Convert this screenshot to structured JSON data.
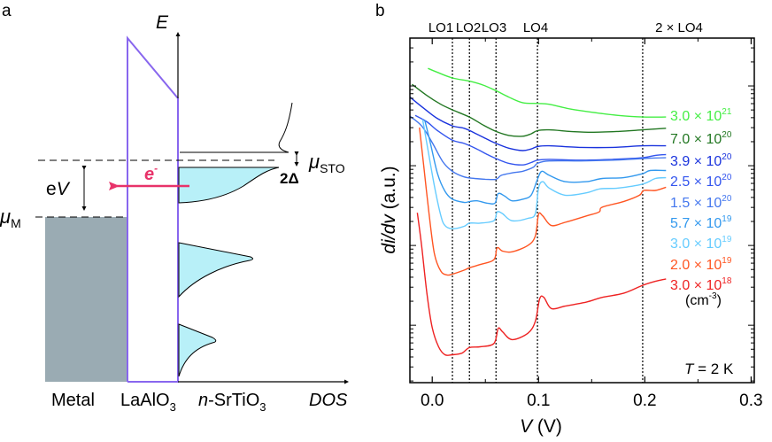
{
  "panel_a": {
    "label": "a",
    "energy_axis_label": "E",
    "dos_axis_label": "DOS",
    "ev_label_e": "e",
    "ev_label_v": "V",
    "mu_sto_symbol": "μ",
    "mu_sto_sub": "STO",
    "mu_m_symbol": "μ",
    "mu_m_sub": "M",
    "gap_label": "2Δ",
    "electron_label": "e",
    "electron_sup": "-",
    "region_labels": {
      "metal": "Metal",
      "barrier_main": "LaAlO",
      "barrier_sub": "3",
      "sto_prefix": "n",
      "sto_main": "-SrTiO",
      "sto_sub": "3"
    },
    "colors": {
      "metal_fill": "#9aabb3",
      "barrier_line": "#8866ee",
      "dos_fill": "#b8f0f8",
      "electron_arrow": "#e8336a"
    }
  },
  "panel_b": {
    "label": "b",
    "temperature_prefix": "T",
    "temperature_value": " = 2 K",
    "unit_label": "(cm",
    "unit_sup": "-3",
    "unit_close": ")",
    "mode_lines": [
      {
        "label": "LO1",
        "V": 0.019
      },
      {
        "label": "LO2",
        "V": 0.035
      },
      {
        "label": "LO3",
        "V": 0.06
      },
      {
        "label": "LO4",
        "V": 0.099
      },
      {
        "label": "2 × LO4",
        "V": 0.198
      }
    ]
  },
  "chart_data": {
    "type": "line",
    "title": "",
    "xlabel": "V (V)",
    "xlabel_italic": "V",
    "xlabel_unit": " (V)",
    "ylabel": "di/dv (a.u.)",
    "ylabel_italic": "di/dv",
    "ylabel_unit": " (a.u.)",
    "x_scale": "linear",
    "y_scale": "log",
    "xlim": [
      -0.021,
      0.303
    ],
    "ylim_log10": [
      0.28,
      4.6
    ],
    "x_ticks": [
      0.0,
      0.1,
      0.2,
      0.3
    ],
    "x_tick_labels": [
      "0.0",
      "0.1",
      "0.2",
      "0.3"
    ],
    "y_tick_labels": [],
    "grid": false,
    "legend_placement": "right, inline at curve ends",
    "series_note": "y values given as log10 of di/dv in arbitrary units (vertically offset curves)",
    "series": [
      {
        "name": "3.0 × 10^21",
        "mantissa": "3.0 × 10",
        "exponent": "21",
        "color": "#44ee44",
        "points": [
          [
            -0.004,
            4.22
          ],
          [
            0.005,
            4.17
          ],
          [
            0.019,
            4.1
          ],
          [
            0.035,
            4.06
          ],
          [
            0.048,
            4.01
          ],
          [
            0.06,
            3.94
          ],
          [
            0.072,
            3.86
          ],
          [
            0.085,
            3.79
          ],
          [
            0.099,
            3.78
          ],
          [
            0.11,
            3.77
          ],
          [
            0.13,
            3.71
          ],
          [
            0.15,
            3.67
          ],
          [
            0.175,
            3.63
          ],
          [
            0.198,
            3.61
          ],
          [
            0.22,
            3.61
          ]
        ]
      },
      {
        "name": "7.0 × 10^20",
        "mantissa": "7.0 × 10",
        "exponent": "20",
        "color": "#227722",
        "points": [
          [
            -0.019,
            4.02
          ],
          [
            -0.005,
            3.88
          ],
          [
            0.008,
            3.77
          ],
          [
            0.019,
            3.7
          ],
          [
            0.035,
            3.61
          ],
          [
            0.048,
            3.51
          ],
          [
            0.06,
            3.43
          ],
          [
            0.072,
            3.38
          ],
          [
            0.085,
            3.37
          ],
          [
            0.093,
            3.4
          ],
          [
            0.099,
            3.44
          ],
          [
            0.11,
            3.45
          ],
          [
            0.13,
            3.43
          ],
          [
            0.15,
            3.42
          ],
          [
            0.175,
            3.43
          ],
          [
            0.198,
            3.45
          ],
          [
            0.22,
            3.47
          ]
        ]
      },
      {
        "name": "3.9 × 10^20",
        "mantissa": "3.9 × 10",
        "exponent": "20",
        "color": "#1a33dd",
        "points": [
          [
            -0.021,
            3.86
          ],
          [
            -0.008,
            3.72
          ],
          [
            0.005,
            3.59
          ],
          [
            0.019,
            3.5
          ],
          [
            0.03,
            3.47
          ],
          [
            0.04,
            3.41
          ],
          [
            0.052,
            3.33
          ],
          [
            0.06,
            3.28
          ],
          [
            0.072,
            3.22
          ],
          [
            0.085,
            3.19
          ],
          [
            0.093,
            3.21
          ],
          [
            0.099,
            3.24
          ],
          [
            0.11,
            3.25
          ],
          [
            0.14,
            3.23
          ],
          [
            0.17,
            3.23
          ],
          [
            0.198,
            3.25
          ],
          [
            0.22,
            3.25
          ]
        ]
      },
      {
        "name": "2.5 × 10^20",
        "mantissa": "2.5 × 10",
        "exponent": "20",
        "color": "#3355ee",
        "points": [
          [
            -0.016,
            3.63
          ],
          [
            -0.005,
            3.55
          ],
          [
            0.005,
            3.44
          ],
          [
            0.019,
            3.32
          ],
          [
            0.03,
            3.28
          ],
          [
            0.042,
            3.21
          ],
          [
            0.052,
            3.14
          ],
          [
            0.06,
            3.09
          ],
          [
            0.072,
            3.03
          ],
          [
            0.085,
            3.01
          ],
          [
            0.093,
            3.04
          ],
          [
            0.099,
            3.07
          ],
          [
            0.11,
            3.08
          ],
          [
            0.14,
            3.07
          ],
          [
            0.17,
            3.08
          ],
          [
            0.198,
            3.1
          ],
          [
            0.21,
            3.13
          ],
          [
            0.22,
            3.14
          ]
        ]
      },
      {
        "name": "1.5 × 10^20",
        "mantissa": "1.5 × 10",
        "exponent": "20",
        "color": "#4477ee",
        "points": [
          [
            -0.021,
            3.62
          ],
          [
            -0.01,
            3.5
          ],
          [
            0.0,
            3.29
          ],
          [
            0.01,
            3.05
          ],
          [
            0.019,
            2.93
          ],
          [
            0.03,
            2.86
          ],
          [
            0.04,
            2.84
          ],
          [
            0.05,
            2.83
          ],
          [
            0.06,
            2.83
          ],
          [
            0.065,
            2.88
          ],
          [
            0.075,
            2.91
          ],
          [
            0.085,
            2.93
          ],
          [
            0.095,
            2.98
          ],
          [
            0.099,
            3.03
          ],
          [
            0.11,
            3.06
          ],
          [
            0.14,
            3.06
          ],
          [
            0.17,
            3.07
          ],
          [
            0.198,
            3.09
          ],
          [
            0.22,
            3.1
          ]
        ]
      },
      {
        "name": "5.7 × 10^19",
        "mantissa": "5.7 × 10",
        "exponent": "19",
        "color": "#3399ee",
        "points": [
          [
            -0.007,
            3.57
          ],
          [
            -0.002,
            3.3
          ],
          [
            0.005,
            2.9
          ],
          [
            0.012,
            2.68
          ],
          [
            0.019,
            2.58
          ],
          [
            0.03,
            2.54
          ],
          [
            0.035,
            2.55
          ],
          [
            0.042,
            2.56
          ],
          [
            0.052,
            2.53
          ],
          [
            0.059,
            2.53
          ],
          [
            0.062,
            2.65
          ],
          [
            0.068,
            2.62
          ],
          [
            0.075,
            2.56
          ],
          [
            0.085,
            2.58
          ],
          [
            0.093,
            2.63
          ],
          [
            0.099,
            2.83
          ],
          [
            0.103,
            2.93
          ],
          [
            0.11,
            2.88
          ],
          [
            0.125,
            2.8
          ],
          [
            0.145,
            2.8
          ],
          [
            0.16,
            2.84
          ],
          [
            0.18,
            2.85
          ],
          [
            0.198,
            2.9
          ],
          [
            0.205,
            2.94
          ],
          [
            0.22,
            2.94
          ]
        ]
      },
      {
        "name": "3.0 × 10^19",
        "mantissa": "3.0 × 10",
        "exponent": "19",
        "color": "#66ccff",
        "points": [
          [
            -0.009,
            3.58
          ],
          [
            -0.004,
            3.2
          ],
          [
            0.002,
            2.75
          ],
          [
            0.008,
            2.38
          ],
          [
            0.012,
            2.25
          ],
          [
            0.019,
            2.21
          ],
          [
            0.03,
            2.24
          ],
          [
            0.035,
            2.28
          ],
          [
            0.045,
            2.28
          ],
          [
            0.058,
            2.31
          ],
          [
            0.061,
            2.42
          ],
          [
            0.066,
            2.4
          ],
          [
            0.075,
            2.31
          ],
          [
            0.09,
            2.34
          ],
          [
            0.097,
            2.4
          ],
          [
            0.1,
            2.72
          ],
          [
            0.104,
            2.8
          ],
          [
            0.11,
            2.72
          ],
          [
            0.125,
            2.63
          ],
          [
            0.145,
            2.66
          ],
          [
            0.158,
            2.71
          ],
          [
            0.175,
            2.72
          ],
          [
            0.198,
            2.77
          ],
          [
            0.21,
            2.84
          ],
          [
            0.22,
            2.85
          ]
        ]
      },
      {
        "name": "2.0 × 10^19",
        "mantissa": "2.0 × 10",
        "exponent": "19",
        "color": "#ff5522",
        "points": [
          [
            -0.012,
            3.48
          ],
          [
            -0.008,
            3.0
          ],
          [
            -0.003,
            2.4
          ],
          [
            0.002,
            1.9
          ],
          [
            0.008,
            1.68
          ],
          [
            0.014,
            1.63
          ],
          [
            0.019,
            1.64
          ],
          [
            0.03,
            1.69
          ],
          [
            0.035,
            1.72
          ],
          [
            0.045,
            1.76
          ],
          [
            0.058,
            1.82
          ],
          [
            0.061,
            1.97
          ],
          [
            0.066,
            1.93
          ],
          [
            0.075,
            1.92
          ],
          [
            0.09,
            2.0
          ],
          [
            0.097,
            2.12
          ],
          [
            0.1,
            2.39
          ],
          [
            0.104,
            2.37
          ],
          [
            0.112,
            2.25
          ],
          [
            0.125,
            2.29
          ],
          [
            0.145,
            2.37
          ],
          [
            0.157,
            2.42
          ],
          [
            0.16,
            2.48
          ],
          [
            0.18,
            2.55
          ],
          [
            0.195,
            2.63
          ],
          [
            0.199,
            2.69
          ],
          [
            0.21,
            2.69
          ],
          [
            0.22,
            2.73
          ]
        ]
      },
      {
        "name": "3.0 × 10^18",
        "mantissa": "3.0 × 10",
        "exponent": "18",
        "color": "#ee2222",
        "points": [
          [
            -0.014,
            2.41
          ],
          [
            -0.01,
            2.0
          ],
          [
            -0.005,
            1.4
          ],
          [
            0.0,
            0.97
          ],
          [
            0.006,
            0.73
          ],
          [
            0.012,
            0.63
          ],
          [
            0.019,
            0.63
          ],
          [
            0.028,
            0.65
          ],
          [
            0.035,
            0.72
          ],
          [
            0.045,
            0.73
          ],
          [
            0.058,
            0.77
          ],
          [
            0.062,
            0.96
          ],
          [
            0.066,
            0.92
          ],
          [
            0.075,
            0.82
          ],
          [
            0.09,
            0.9
          ],
          [
            0.097,
            1.05
          ],
          [
            0.101,
            1.33
          ],
          [
            0.105,
            1.35
          ],
          [
            0.112,
            1.21
          ],
          [
            0.125,
            1.24
          ],
          [
            0.145,
            1.29
          ],
          [
            0.16,
            1.35
          ],
          [
            0.18,
            1.4
          ],
          [
            0.198,
            1.5
          ],
          [
            0.21,
            1.55
          ],
          [
            0.22,
            1.58
          ]
        ]
      }
    ]
  }
}
